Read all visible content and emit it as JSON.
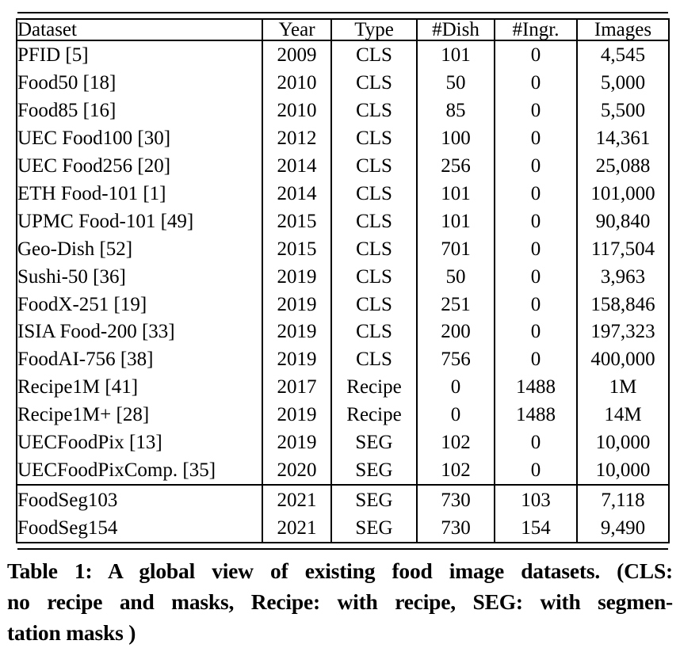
{
  "colors": {
    "text": "#000000",
    "background": "#ffffff",
    "border": "#000000"
  },
  "table": {
    "columns": [
      "Dataset",
      "Year",
      "Type",
      "#Dish",
      "#Ingr.",
      "Images"
    ],
    "rows": [
      [
        "PFID [5]",
        "2009",
        "CLS",
        "101",
        "0",
        "4,545"
      ],
      [
        "Food50 [18]",
        "2010",
        "CLS",
        "50",
        "0",
        "5,000"
      ],
      [
        "Food85 [16]",
        "2010",
        "CLS",
        "85",
        "0",
        "5,500"
      ],
      [
        "UEC Food100 [30]",
        "2012",
        "CLS",
        "100",
        "0",
        "14,361"
      ],
      [
        "UEC Food256 [20]",
        "2014",
        "CLS",
        "256",
        "0",
        "25,088"
      ],
      [
        "ETH Food-101 [1]",
        "2014",
        "CLS",
        "101",
        "0",
        "101,000"
      ],
      [
        "UPMC Food-101 [49]",
        "2015",
        "CLS",
        "101",
        "0",
        "90,840"
      ],
      [
        "Geo-Dish [52]",
        "2015",
        "CLS",
        "701",
        "0",
        "117,504"
      ],
      [
        "Sushi-50 [36]",
        "2019",
        "CLS",
        "50",
        "0",
        "3,963"
      ],
      [
        "FoodX-251 [19]",
        "2019",
        "CLS",
        "251",
        "0",
        "158,846"
      ],
      [
        "ISIA Food-200 [33]",
        "2019",
        "CLS",
        "200",
        "0",
        "197,323"
      ],
      [
        "FoodAI-756 [38]",
        "2019",
        "CLS",
        "756",
        "0",
        "400,000"
      ],
      [
        "Recipe1M [41]",
        "2017",
        "Recipe",
        "0",
        "1488",
        "1M"
      ],
      [
        "Recipe1M+ [28]",
        "2019",
        "Recipe",
        "0",
        "1488",
        "14M"
      ],
      [
        "UECFoodPix [13]",
        "2019",
        "SEG",
        "102",
        "0",
        "10,000"
      ],
      [
        "UECFoodPixComp. [35]",
        "2020",
        "SEG",
        "102",
        "0",
        "10,000"
      ]
    ],
    "footer_rows": [
      [
        "FoodSeg103",
        "2021",
        "SEG",
        "730",
        "103",
        "7,118"
      ],
      [
        "FoodSeg154",
        "2021",
        "SEG",
        "730",
        "154",
        "9,490"
      ]
    ]
  },
  "caption": {
    "lines": [
      "Table 1: A global view of existing food image datasets. (CLS:",
      "no recipe and masks, Recipe: with recipe, SEG: with segmen-",
      "tation masks )"
    ],
    "full_text": "Table 1: A global view of existing food image datasets. (CLS: no recipe and masks, Recipe: with recipe, SEG: with segmentation masks )"
  }
}
